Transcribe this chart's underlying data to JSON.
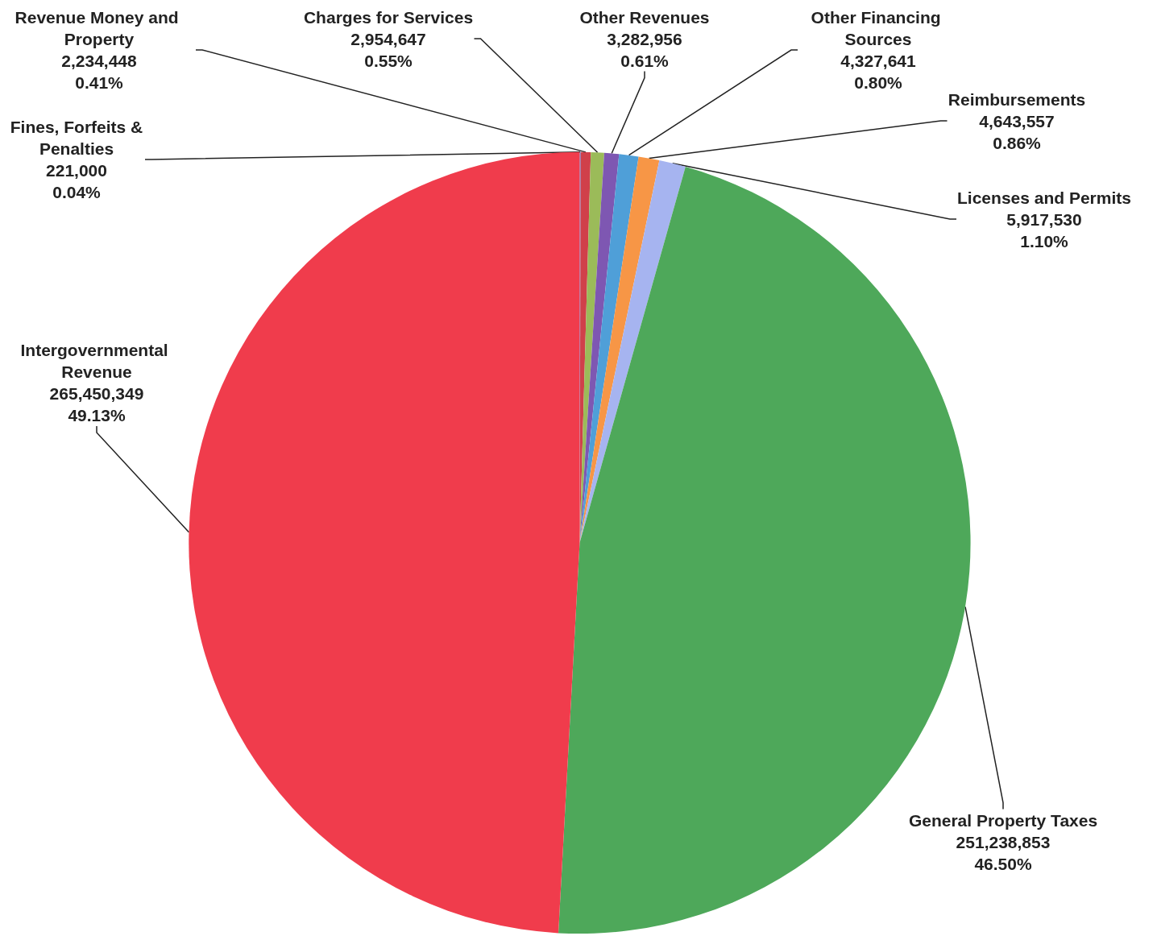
{
  "chart_data": {
    "type": "pie",
    "categories": [
      "Fines, Forfeits &Penalties",
      "Revenue Money and Property",
      "Charges for Services",
      "Other Revenues",
      "Other Financing Sources",
      "Reimbursements",
      "Licenses and Permits",
      "General Property Taxes",
      "Intergovernmental Revenue"
    ],
    "values": [
      221000,
      2234448,
      2954647,
      3282956,
      4327641,
      4643557,
      5917530,
      251238853,
      265450349
    ],
    "value_labels": [
      "221,000\n0.04%",
      "2,234,448\n0.41%",
      "2,954,647\n0.55%",
      "3,282,956\n0.61%",
      "4,327,641\n0.80%",
      "4,643,557\n0.86%",
      "5,917,530\n1.10%",
      "251,238,853\n46.50%",
      "265,450,349\n49.13%"
    ],
    "colors": [
      "#5a6fd0",
      "#d0404a",
      "#9bbb59",
      "#7e57b2",
      "#4f9fd8",
      "#f79646",
      "#a6b4f0",
      "#4ea85a",
      "#f03c4c"
    ],
    "legend": false
  }
}
